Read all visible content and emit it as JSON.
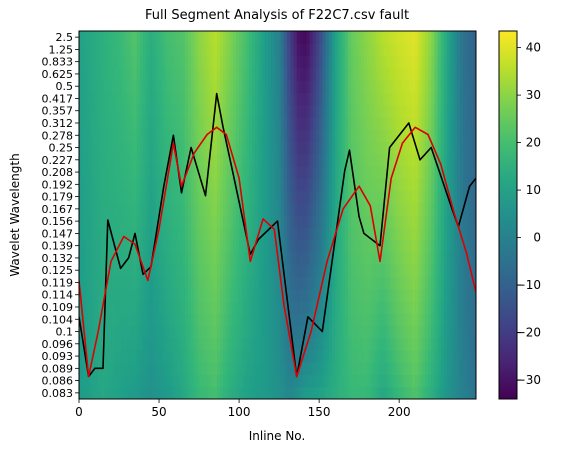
{
  "chart_data": {
    "type": "heatmap",
    "title": "Full Segment Analysis of F22C7.csv fault",
    "xlabel": "Inline No.",
    "ylabel": "Wavelet Wavelength",
    "xlim": [
      0,
      248
    ],
    "x_ticks": [
      0,
      50,
      100,
      150,
      200
    ],
    "y_tick_labels": [
      "2.5",
      "1.25",
      "0.833",
      "0.625",
      "0.5",
      "0.417",
      "0.357",
      "0.312",
      "0.278",
      "0.25",
      "0.227",
      "0.208",
      "0.192",
      "0.179",
      "0.167",
      "0.156",
      "0.147",
      "0.139",
      "0.132",
      "0.125",
      "0.119",
      "0.114",
      "0.109",
      "0.104",
      "0.1",
      "0.096",
      "0.093",
      "0.089",
      "0.086",
      "0.083"
    ],
    "colorbar": {
      "colormap": "viridis",
      "vmin": -34,
      "vmax": 43.5,
      "ticks": [
        -30,
        -20,
        -10,
        0,
        10,
        20,
        30,
        40
      ]
    },
    "heatmap_profile": {
      "x": [
        0,
        15,
        25,
        35,
        45,
        55,
        65,
        75,
        85,
        95,
        105,
        115,
        125,
        132,
        137,
        142,
        150,
        160,
        170,
        180,
        190,
        200,
        210,
        220,
        230,
        240,
        248
      ],
      "top_values": [
        10,
        15,
        18,
        22,
        14,
        20,
        22,
        30,
        35,
        28,
        20,
        10,
        0,
        -20,
        -30,
        -32,
        -18,
        10,
        25,
        30,
        35,
        38,
        40,
        30,
        12,
        -5,
        -10
      ],
      "bottom_values": [
        8,
        12,
        10,
        8,
        5,
        8,
        12,
        18,
        20,
        14,
        10,
        8,
        5,
        2,
        5,
        8,
        10,
        14,
        18,
        18,
        12,
        18,
        22,
        15,
        6,
        0,
        -5
      ]
    },
    "series": [
      {
        "color": "#000000",
        "x": [
          0,
          6,
          10,
          15,
          18,
          26,
          31,
          35,
          40,
          45,
          53,
          59,
          64,
          70,
          79,
          86,
          90,
          95,
          107,
          112,
          124,
          136,
          143,
          152,
          166,
          169,
          175,
          178,
          188,
          194,
          206,
          213,
          220,
          233,
          237,
          244,
          248
        ],
        "y": [
          0.105,
          0.087,
          0.089,
          0.089,
          0.157,
          0.126,
          0.132,
          0.147,
          0.123,
          0.127,
          0.19,
          0.278,
          0.183,
          0.25,
          0.18,
          0.45,
          0.3,
          0.22,
          0.134,
          0.143,
          0.156,
          0.087,
          0.105,
          0.1,
          0.21,
          0.245,
          0.16,
          0.147,
          0.139,
          0.25,
          0.312,
          0.227,
          0.25,
          0.167,
          0.152,
          0.19,
          0.2
        ]
      },
      {
        "color": "#dd0000",
        "x": [
          0,
          6,
          12,
          20,
          28,
          35,
          43,
          50,
          59,
          64,
          72,
          80,
          86,
          92,
          100,
          107,
          115,
          122,
          128,
          136,
          145,
          155,
          165,
          175,
          182,
          188,
          195,
          202,
          210,
          218,
          226,
          234,
          242,
          248
        ],
        "y": [
          0.12,
          0.087,
          0.1,
          0.13,
          0.145,
          0.14,
          0.12,
          0.15,
          0.26,
          0.19,
          0.24,
          0.28,
          0.3,
          0.28,
          0.2,
          0.13,
          0.158,
          0.15,
          0.11,
          0.087,
          0.1,
          0.13,
          0.167,
          0.19,
          0.17,
          0.13,
          0.2,
          0.26,
          0.3,
          0.28,
          0.22,
          0.165,
          0.135,
          0.115
        ]
      }
    ]
  }
}
